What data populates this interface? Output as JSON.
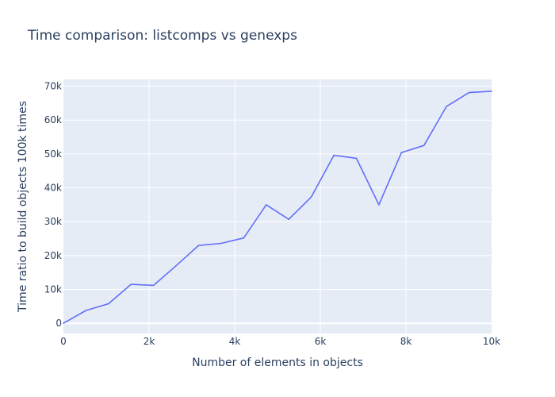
{
  "chart_data": {
    "type": "line",
    "title": "Time comparison: listcomps vs genexps",
    "xlabel": "Number of elements in objects",
    "ylabel": "Time ratio to build objects 100k times",
    "xlim": [
      0,
      10000
    ],
    "ylim": [
      -3000,
      72000
    ],
    "grid": true,
    "x_ticks": [
      {
        "value": 0,
        "label": "0"
      },
      {
        "value": 2000,
        "label": "2k"
      },
      {
        "value": 4000,
        "label": "4k"
      },
      {
        "value": 6000,
        "label": "6k"
      },
      {
        "value": 8000,
        "label": "8k"
      },
      {
        "value": 10000,
        "label": "10k"
      }
    ],
    "y_ticks": [
      {
        "value": 0,
        "label": "0"
      },
      {
        "value": 10000,
        "label": "10k"
      },
      {
        "value": 20000,
        "label": "20k"
      },
      {
        "value": 30000,
        "label": "30k"
      },
      {
        "value": 40000,
        "label": "40k"
      },
      {
        "value": 50000,
        "label": "50k"
      },
      {
        "value": 60000,
        "label": "60k"
      },
      {
        "value": 70000,
        "label": "70k"
      }
    ],
    "series": [
      {
        "color": "#636efa",
        "x": [
          0,
          526,
          1053,
          1579,
          2105,
          2632,
          3158,
          3684,
          4211,
          4737,
          5263,
          5789,
          6316,
          6842,
          7368,
          7895,
          8421,
          8947,
          9474,
          10000
        ],
        "y": [
          0,
          3800,
          5800,
          11500,
          11200,
          17000,
          23000,
          23600,
          25200,
          35000,
          30700,
          37300,
          49600,
          48700,
          35000,
          50400,
          52500,
          64000,
          68100,
          68500
        ]
      }
    ]
  }
}
